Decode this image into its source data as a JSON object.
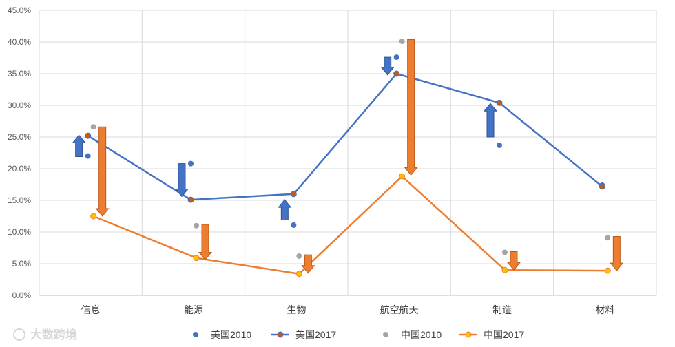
{
  "chart_data": {
    "type": "line",
    "categories": [
      "信息",
      "能源",
      "生物",
      "航空航天",
      "制造",
      "材料"
    ],
    "ylim": [
      0,
      45
    ],
    "y_ticks": [
      "0.0%",
      "5.0%",
      "10.0%",
      "15.0%",
      "20.0%",
      "25.0%",
      "30.0%",
      "35.0%",
      "40.0%",
      "45.0%"
    ],
    "grid": true,
    "legend_position": "bottom",
    "series": [
      {
        "name": "美国2010",
        "kind": "markers",
        "color": "#4472c4",
        "values": [
          22.0,
          20.8,
          11.1,
          37.6,
          23.7,
          17.4
        ]
      },
      {
        "name": "美国2017",
        "kind": "line+markers",
        "color": "#4472c4",
        "marker_color": "#c55a11",
        "values": [
          25.2,
          15.1,
          16.0,
          35.0,
          30.4,
          17.2
        ]
      },
      {
        "name": "中国2010",
        "kind": "markers",
        "color": "#a5a5a5",
        "values": [
          26.6,
          11.0,
          6.2,
          40.1,
          6.8,
          9.1
        ]
      },
      {
        "name": "中国2017",
        "kind": "line+markers",
        "color": "#ed7d31",
        "marker_color": "#ffc000",
        "values": [
          12.5,
          5.9,
          3.4,
          18.8,
          4.0,
          3.9
        ]
      }
    ],
    "arrows": [
      {
        "category": "信息",
        "from": 21.9,
        "to": 25.3,
        "color": "#4472c4"
      },
      {
        "category": "信息",
        "from": 26.6,
        "to": 12.5,
        "color": "#ed7d31"
      },
      {
        "category": "能源",
        "from": 20.8,
        "to": 15.6,
        "color": "#4472c4"
      },
      {
        "category": "能源",
        "from": 11.2,
        "to": 5.6,
        "color": "#ed7d31"
      },
      {
        "category": "生物",
        "from": 11.9,
        "to": 15.1,
        "color": "#4472c4"
      },
      {
        "category": "生物",
        "from": 6.4,
        "to": 3.5,
        "color": "#ed7d31"
      },
      {
        "category": "航空航天",
        "from": 37.6,
        "to": 34.8,
        "color": "#4472c4"
      },
      {
        "category": "航空航天",
        "from": 40.4,
        "to": 19.0,
        "color": "#ed7d31"
      },
      {
        "category": "制造",
        "from": 25.0,
        "to": 30.3,
        "color": "#4472c4"
      },
      {
        "category": "制造",
        "from": 6.9,
        "to": 4.0,
        "color": "#ed7d31"
      },
      {
        "category": "材料",
        "from": 9.3,
        "to": 3.9,
        "color": "#ed7d31"
      }
    ]
  },
  "watermark": {
    "text": "大数跨境"
  }
}
